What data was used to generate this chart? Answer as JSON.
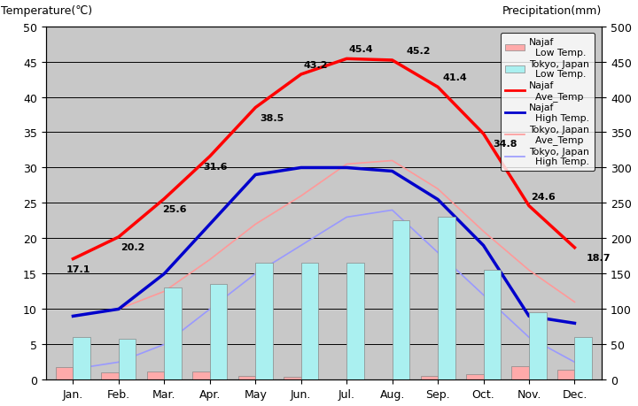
{
  "months": [
    "Jan.",
    "Feb.",
    "Mar.",
    "Apr.",
    "May",
    "Jun.",
    "Jul.",
    "Aug.",
    "Sep.",
    "Oct.",
    "Nov.",
    "Dec."
  ],
  "najaf_ave_temp": [
    17.1,
    20.2,
    25.6,
    31.6,
    38.5,
    43.2,
    45.4,
    45.2,
    41.4,
    34.8,
    24.6,
    18.7
  ],
  "najaf_high_temp": [
    9.0,
    10.0,
    15.0,
    22.0,
    29.0,
    30.0,
    30.0,
    29.5,
    25.5,
    19.0,
    9.0,
    8.0
  ],
  "tokyo_ave_temp": [
    9.0,
    10.0,
    12.5,
    17.0,
    22.0,
    26.0,
    30.5,
    31.0,
    27.0,
    21.0,
    15.5,
    11.0
  ],
  "tokyo_high_temp": [
    1.5,
    2.5,
    5.0,
    10.0,
    15.0,
    19.0,
    23.0,
    24.0,
    18.0,
    12.0,
    6.0,
    2.5
  ],
  "najaf_precip": [
    18,
    10,
    12,
    12,
    5,
    4,
    1,
    1,
    5,
    8,
    19,
    14
  ],
  "tokyo_precip": [
    60,
    58,
    130,
    135,
    165,
    165,
    165,
    225,
    230,
    155,
    95,
    60
  ],
  "najaf_ave_temp_labels": [
    17.1,
    20.2,
    25.6,
    31.6,
    38.5,
    43.2,
    45.4,
    45.2,
    41.4,
    34.8,
    24.6,
    18.7
  ],
  "label_offsets_x": [
    -0.15,
    0.05,
    -0.05,
    -0.15,
    0.1,
    0.05,
    0.05,
    0.3,
    0.1,
    0.2,
    0.05,
    0.25
  ],
  "label_offsets_y": [
    -1.8,
    -1.8,
    -1.8,
    -1.8,
    -1.8,
    1.0,
    1.0,
    1.0,
    1.0,
    -1.8,
    1.0,
    -1.8
  ],
  "temp_ylim": [
    0,
    50
  ],
  "precip_ylim": [
    0,
    500
  ],
  "temp_yticks": [
    0,
    5,
    10,
    15,
    20,
    25,
    30,
    35,
    40,
    45,
    50
  ],
  "precip_yticks": [
    0,
    50,
    100,
    150,
    200,
    250,
    300,
    350,
    400,
    450,
    500
  ],
  "background_color": "#c8c8c8",
  "najaf_ave_color": "#ff0000",
  "najaf_high_color": "#0000cc",
  "tokyo_ave_color": "#ff9999",
  "tokyo_high_color": "#9999ff",
  "najaf_bar_color": "#ffaaaa",
  "tokyo_bar_color": "#aaf0f0",
  "ylabel_left": "Temperature(℃)",
  "ylabel_right": "Precipitation(mm)",
  "grid_color": "#000000",
  "bar_width": 0.38
}
